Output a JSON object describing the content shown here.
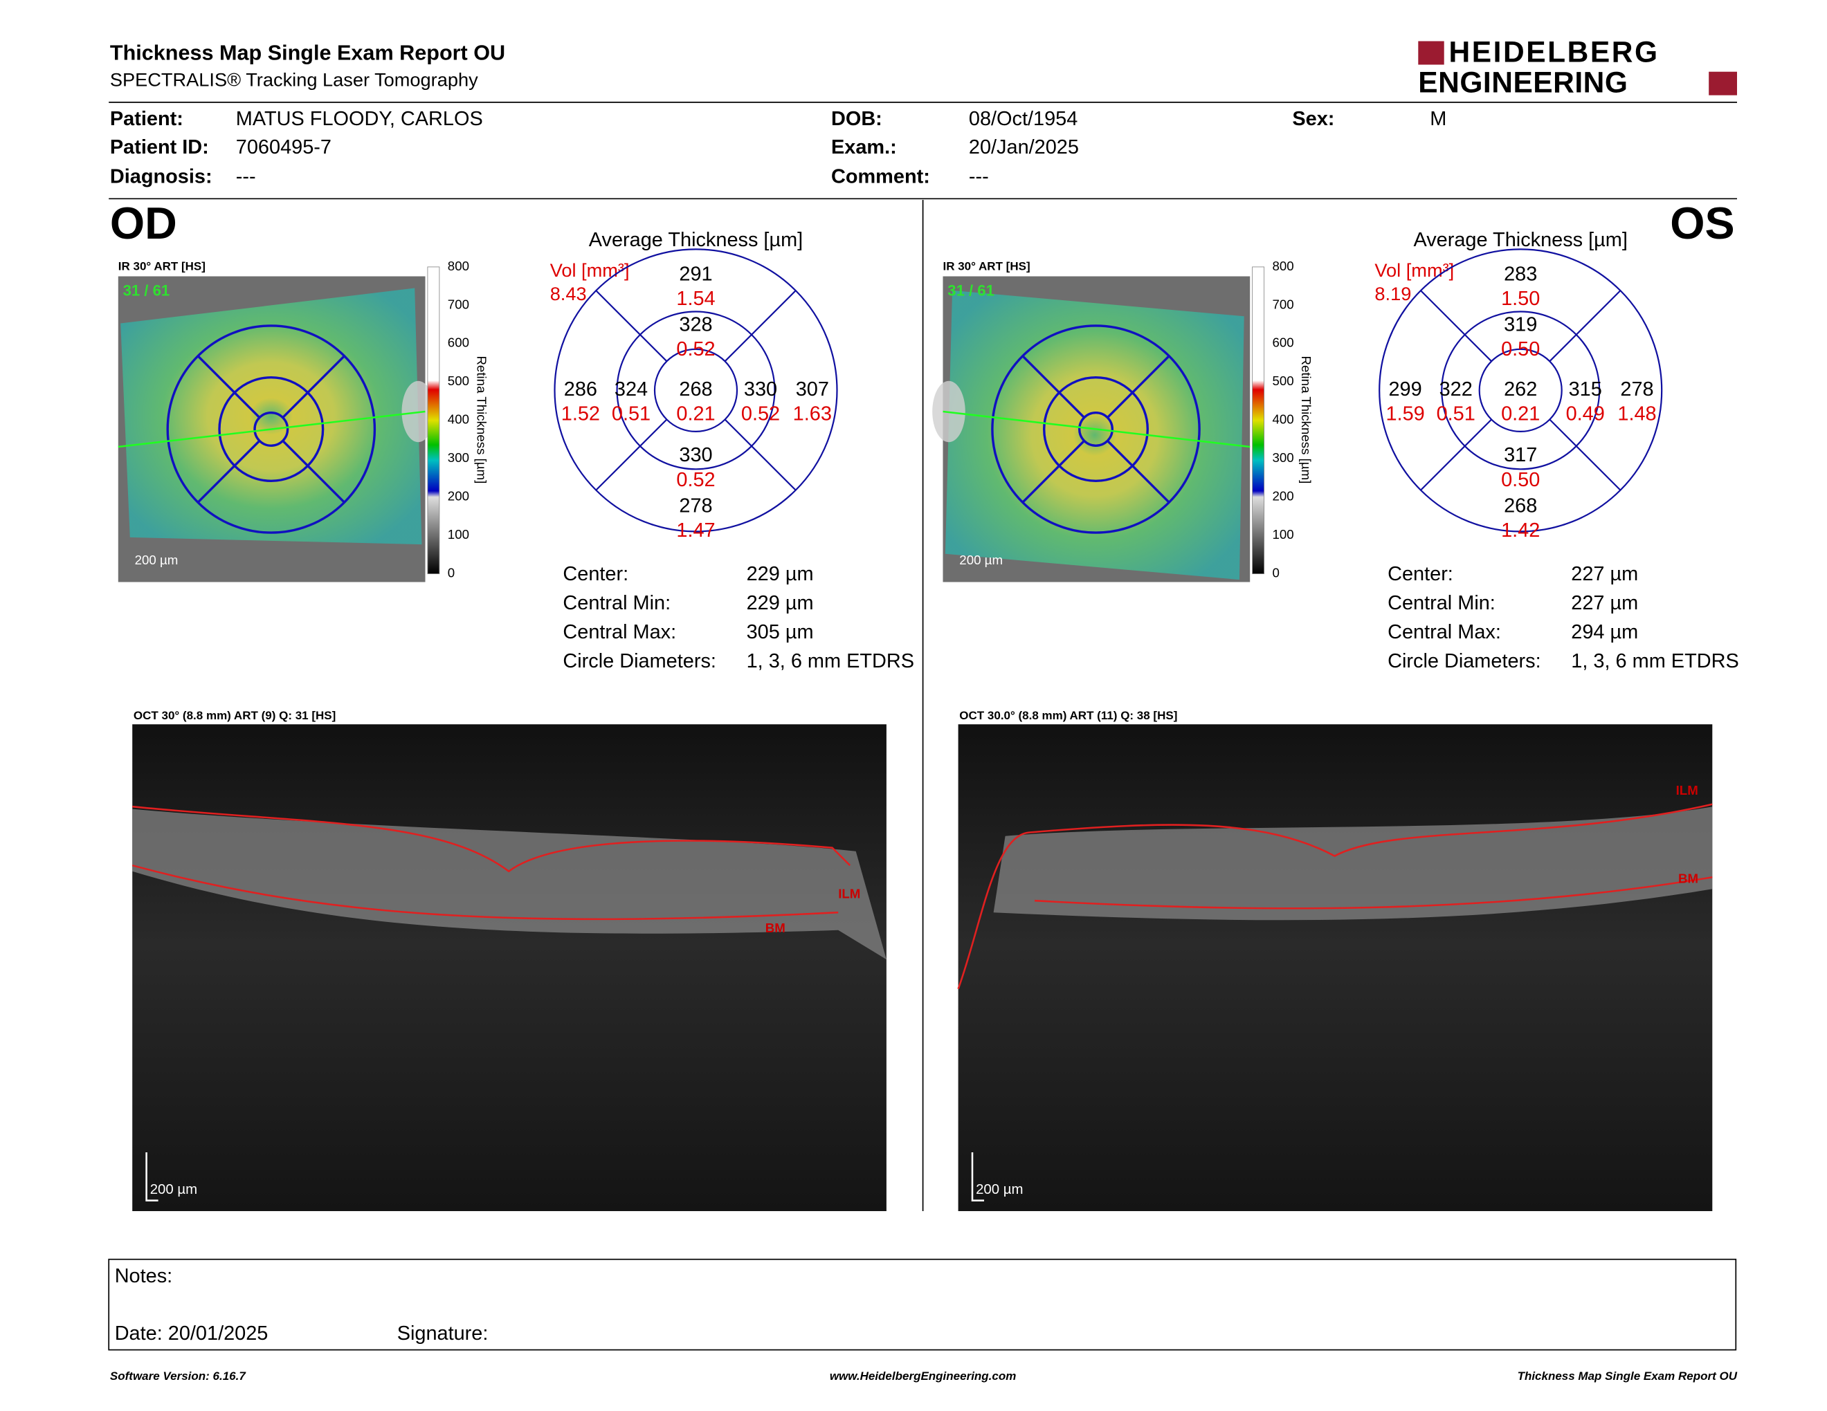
{
  "header": {
    "title": "Thickness Map Single Exam Report OU",
    "subtitle": "SPECTRALIS® Tracking Laser Tomography",
    "logo": [
      "HEIDELBERG",
      "ENGINEERING"
    ]
  },
  "patient": [
    [
      {
        "label": "Patient:",
        "value": "MATUS FLOODY, CARLOS"
      },
      {
        "label": "DOB:",
        "value": "08/Oct/1954"
      },
      {
        "label": "Sex:",
        "value": "M"
      }
    ],
    [
      {
        "label": "Patient ID:",
        "value": "7060495-7"
      },
      {
        "label": "Exam.:",
        "value": "20/Jan/2025"
      }
    ],
    [
      {
        "label": "Diagnosis:",
        "value": "---"
      },
      {
        "label": "Comment:",
        "value": "---"
      }
    ]
  ],
  "eyes": [
    {
      "label": "OD",
      "ir_title": "IR 30° ART [HS]",
      "ir_counter": "31 / 61",
      "ir_scale": "200 µm",
      "colorbar_title": "Retina Thickness [µm]",
      "colorbar_ticks": [
        800,
        700,
        600,
        500,
        400,
        300,
        200,
        100,
        0
      ],
      "grid_title": "Average Thickness [µm]",
      "vol_label": "Vol [mm³]",
      "vol_value": "8.43",
      "sectors": {
        "outer_top": {
          "thickness": 291,
          "volume": "1.54"
        },
        "inner_top": {
          "thickness": 328,
          "volume": "0.52"
        },
        "outer_left": {
          "thickness": 286,
          "volume": "1.52"
        },
        "inner_left": {
          "thickness": 324,
          "volume": "0.51"
        },
        "center": {
          "thickness": 268,
          "volume": "0.21"
        },
        "inner_right": {
          "thickness": 330,
          "volume": "0.52"
        },
        "outer_right": {
          "thickness": 307,
          "volume": "1.63"
        },
        "inner_bottom": {
          "thickness": 330,
          "volume": "0.52"
        },
        "outer_bottom": {
          "thickness": 278,
          "volume": "1.47"
        }
      },
      "stats": [
        {
          "label": "Center:",
          "value": "229 µm"
        },
        {
          "label": "Central Min:",
          "value": "229 µm"
        },
        {
          "label": "Central Max:",
          "value": "305 µm"
        },
        {
          "label": "Circle Diameters:",
          "value": "1, 3, 6 mm ETDRS"
        }
      ],
      "oct_title": "OCT 30° (8.8 mm) ART (9) Q: 31 [HS]",
      "oct_scale": "200 µm",
      "ilm": "ILM",
      "bm": "BM"
    },
    {
      "label": "OS",
      "ir_title": "IR 30° ART [HS]",
      "ir_counter": "31 / 61",
      "ir_scale": "200 µm",
      "colorbar_title": "Retina Thickness [µm]",
      "colorbar_ticks": [
        800,
        700,
        600,
        500,
        400,
        300,
        200,
        100,
        0
      ],
      "grid_title": "Average Thickness [µm]",
      "vol_label": "Vol [mm³]",
      "vol_value": "8.19",
      "sectors": {
        "outer_top": {
          "thickness": 283,
          "volume": "1.50"
        },
        "inner_top": {
          "thickness": 319,
          "volume": "0.50"
        },
        "outer_left": {
          "thickness": 299,
          "volume": "1.59"
        },
        "inner_left": {
          "thickness": 322,
          "volume": "0.51"
        },
        "center": {
          "thickness": 262,
          "volume": "0.21"
        },
        "inner_right": {
          "thickness": 315,
          "volume": "0.49"
        },
        "outer_right": {
          "thickness": 278,
          "volume": "1.48"
        },
        "inner_bottom": {
          "thickness": 317,
          "volume": "0.50"
        },
        "outer_bottom": {
          "thickness": 268,
          "volume": "1.42"
        }
      },
      "stats": [
        {
          "label": "Center:",
          "value": "227 µm"
        },
        {
          "label": "Central Min:",
          "value": "227 µm"
        },
        {
          "label": "Central Max:",
          "value": "294 µm"
        },
        {
          "label": "Circle Diameters:",
          "value": "1, 3, 6 mm ETDRS"
        }
      ],
      "oct_title": "OCT 30.0° (8.8 mm) ART (11) Q: 38 [HS]",
      "oct_scale": "200 µm",
      "ilm": "ILM",
      "bm": "BM"
    }
  ],
  "notes": {
    "label": "Notes:",
    "date": "Date: 20/01/2025",
    "signature": "Signature:"
  },
  "footer": {
    "left": "Software Version: 6.16.7",
    "center": "www.HeidelbergEngineering.com",
    "right": "Thickness Map Single Exam Report OU"
  }
}
